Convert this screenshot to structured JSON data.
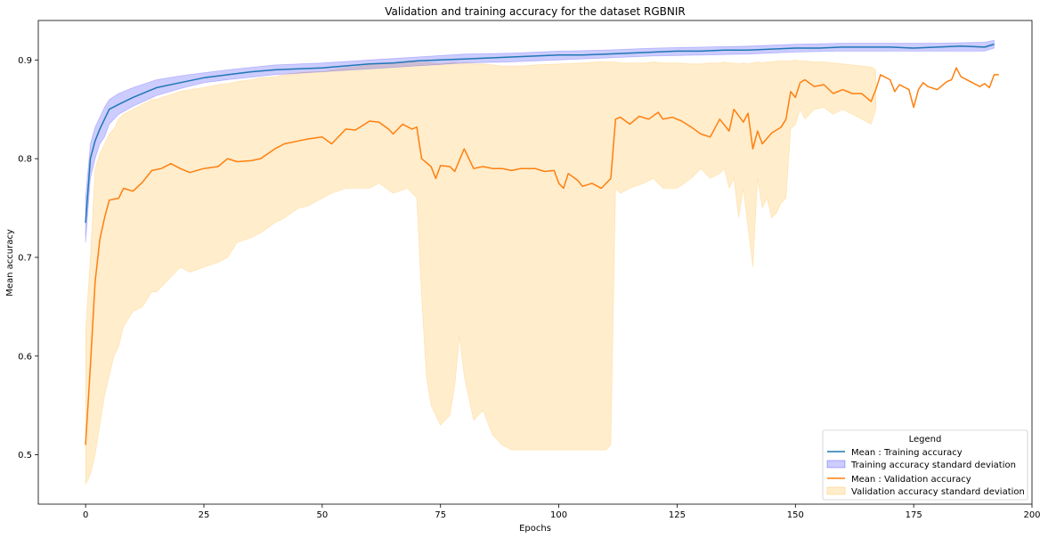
{
  "chart_data": {
    "type": "line",
    "title": "Validation and training accuracy for the dataset RGBNIR",
    "xlabel": "Epochs",
    "ylabel": "Mean accuracy",
    "xlim": [
      -10,
      200
    ],
    "ylim": [
      0.45,
      0.94
    ],
    "xticks": [
      0,
      25,
      50,
      75,
      100,
      125,
      150,
      175,
      200
    ],
    "yticks": [
      0.5,
      0.6,
      0.7,
      0.8,
      0.9
    ],
    "grid": false,
    "legend": {
      "title": "Legend",
      "placement": "lower-right",
      "entries": [
        "Mean : Training accuracy",
        "Training accuracy standard deviation",
        "Mean : Validation accuracy",
        "Validation accuracy standard deviation"
      ]
    },
    "colors": {
      "training_line": "#1f77b4",
      "training_band": "#0000ff",
      "validation_line": "#ff7f0e",
      "validation_band": "#ffa500"
    },
    "series": [
      {
        "name": "Mean : Training accuracy",
        "kind": "line",
        "points": [
          [
            0,
            0.735
          ],
          [
            1,
            0.8
          ],
          [
            2,
            0.818
          ],
          [
            3,
            0.83
          ],
          [
            4,
            0.84
          ],
          [
            5,
            0.85
          ],
          [
            7,
            0.855
          ],
          [
            10,
            0.862
          ],
          [
            13,
            0.868
          ],
          [
            15,
            0.872
          ],
          [
            20,
            0.877
          ],
          [
            25,
            0.882
          ],
          [
            30,
            0.885
          ],
          [
            35,
            0.888
          ],
          [
            40,
            0.89
          ],
          [
            45,
            0.891
          ],
          [
            50,
            0.892
          ],
          [
            55,
            0.894
          ],
          [
            60,
            0.896
          ],
          [
            65,
            0.897
          ],
          [
            70,
            0.899
          ],
          [
            75,
            0.9
          ],
          [
            80,
            0.901
          ],
          [
            85,
            0.902
          ],
          [
            90,
            0.903
          ],
          [
            95,
            0.904
          ],
          [
            100,
            0.905
          ],
          [
            105,
            0.905
          ],
          [
            110,
            0.906
          ],
          [
            115,
            0.907
          ],
          [
            120,
            0.908
          ],
          [
            125,
            0.909
          ],
          [
            130,
            0.909
          ],
          [
            135,
            0.91
          ],
          [
            140,
            0.91
          ],
          [
            145,
            0.911
          ],
          [
            150,
            0.912
          ],
          [
            155,
            0.912
          ],
          [
            160,
            0.913
          ],
          [
            165,
            0.913
          ],
          [
            170,
            0.913
          ],
          [
            175,
            0.912
          ],
          [
            180,
            0.913
          ],
          [
            185,
            0.914
          ],
          [
            190,
            0.913
          ],
          [
            192,
            0.916
          ]
        ]
      },
      {
        "name": "Training accuracy standard deviation",
        "kind": "band",
        "x": [
          0,
          1,
          2,
          3,
          4,
          5,
          7,
          10,
          15,
          20,
          25,
          30,
          40,
          50,
          60,
          70,
          80,
          90,
          100,
          110,
          120,
          130,
          140,
          150,
          160,
          170,
          180,
          190,
          192
        ],
        "lower": [
          0.715,
          0.78,
          0.8,
          0.815,
          0.822,
          0.835,
          0.845,
          0.853,
          0.864,
          0.871,
          0.877,
          0.88,
          0.885,
          0.888,
          0.891,
          0.894,
          0.897,
          0.898,
          0.9,
          0.902,
          0.904,
          0.905,
          0.906,
          0.908,
          0.909,
          0.909,
          0.909,
          0.909,
          0.912
        ],
        "upper": [
          0.76,
          0.815,
          0.832,
          0.842,
          0.852,
          0.86,
          0.866,
          0.872,
          0.88,
          0.884,
          0.887,
          0.89,
          0.895,
          0.897,
          0.9,
          0.903,
          0.906,
          0.907,
          0.909,
          0.91,
          0.912,
          0.913,
          0.914,
          0.916,
          0.917,
          0.917,
          0.917,
          0.918,
          0.92
        ]
      },
      {
        "name": "Mean : Validation accuracy",
        "kind": "line",
        "points": [
          [
            0,
            0.51
          ],
          [
            1,
            0.59
          ],
          [
            2,
            0.675
          ],
          [
            3,
            0.718
          ],
          [
            4,
            0.74
          ],
          [
            5,
            0.758
          ],
          [
            7,
            0.76
          ],
          [
            8,
            0.77
          ],
          [
            10,
            0.767
          ],
          [
            12,
            0.776
          ],
          [
            14,
            0.788
          ],
          [
            16,
            0.79
          ],
          [
            18,
            0.795
          ],
          [
            20,
            0.79
          ],
          [
            22,
            0.786
          ],
          [
            25,
            0.79
          ],
          [
            28,
            0.792
          ],
          [
            30,
            0.8
          ],
          [
            32,
            0.797
          ],
          [
            35,
            0.798
          ],
          [
            37,
            0.8
          ],
          [
            40,
            0.81
          ],
          [
            42,
            0.815
          ],
          [
            45,
            0.818
          ],
          [
            47,
            0.82
          ],
          [
            50,
            0.822
          ],
          [
            52,
            0.815
          ],
          [
            55,
            0.83
          ],
          [
            57,
            0.829
          ],
          [
            60,
            0.838
          ],
          [
            62,
            0.837
          ],
          [
            64,
            0.83
          ],
          [
            65,
            0.825
          ],
          [
            67,
            0.835
          ],
          [
            69,
            0.83
          ],
          [
            70,
            0.832
          ],
          [
            71,
            0.8
          ],
          [
            73,
            0.792
          ],
          [
            74,
            0.78
          ],
          [
            75,
            0.793
          ],
          [
            77,
            0.792
          ],
          [
            78,
            0.787
          ],
          [
            80,
            0.81
          ],
          [
            82,
            0.79
          ],
          [
            84,
            0.792
          ],
          [
            86,
            0.79
          ],
          [
            88,
            0.79
          ],
          [
            90,
            0.788
          ],
          [
            92,
            0.79
          ],
          [
            95,
            0.79
          ],
          [
            97,
            0.787
          ],
          [
            99,
            0.788
          ],
          [
            100,
            0.775
          ],
          [
            101,
            0.77
          ],
          [
            102,
            0.785
          ],
          [
            104,
            0.778
          ],
          [
            105,
            0.772
          ],
          [
            107,
            0.775
          ],
          [
            109,
            0.77
          ],
          [
            111,
            0.78
          ],
          [
            112,
            0.84
          ],
          [
            113,
            0.842
          ],
          [
            115,
            0.835
          ],
          [
            117,
            0.843
          ],
          [
            119,
            0.84
          ],
          [
            121,
            0.847
          ],
          [
            122,
            0.84
          ],
          [
            124,
            0.842
          ],
          [
            126,
            0.838
          ],
          [
            128,
            0.832
          ],
          [
            130,
            0.825
          ],
          [
            132,
            0.822
          ],
          [
            134,
            0.84
          ],
          [
            136,
            0.828
          ],
          [
            137,
            0.85
          ],
          [
            139,
            0.837
          ],
          [
            140,
            0.846
          ],
          [
            141,
            0.81
          ],
          [
            142,
            0.828
          ],
          [
            143,
            0.815
          ],
          [
            145,
            0.826
          ],
          [
            147,
            0.832
          ],
          [
            148,
            0.84
          ],
          [
            149,
            0.868
          ],
          [
            150,
            0.862
          ],
          [
            151,
            0.877
          ],
          [
            152,
            0.88
          ],
          [
            154,
            0.873
          ],
          [
            156,
            0.875
          ],
          [
            158,
            0.866
          ],
          [
            160,
            0.87
          ],
          [
            162,
            0.866
          ],
          [
            164,
            0.866
          ],
          [
            166,
            0.858
          ],
          [
            167,
            0.87
          ],
          [
            168,
            0.885
          ],
          [
            170,
            0.88
          ],
          [
            171,
            0.868
          ],
          [
            172,
            0.875
          ],
          [
            174,
            0.87
          ],
          [
            175,
            0.852
          ],
          [
            176,
            0.87
          ],
          [
            177,
            0.877
          ],
          [
            178,
            0.873
          ],
          [
            180,
            0.87
          ],
          [
            182,
            0.878
          ],
          [
            183,
            0.88
          ],
          [
            184,
            0.892
          ],
          [
            185,
            0.883
          ],
          [
            187,
            0.878
          ],
          [
            189,
            0.873
          ],
          [
            190,
            0.876
          ],
          [
            191,
            0.872
          ],
          [
            192,
            0.885
          ],
          [
            193,
            0.885
          ]
        ]
      },
      {
        "name": "Validation accuracy standard deviation",
        "kind": "band",
        "x": [
          0,
          1,
          2,
          3,
          4,
          5,
          6,
          7,
          8,
          10,
          12,
          14,
          15,
          16,
          18,
          20,
          22,
          25,
          28,
          30,
          32,
          35,
          37,
          40,
          42,
          45,
          47,
          50,
          52,
          55,
          57,
          60,
          62,
          65,
          68,
          70,
          71,
          72,
          73,
          75,
          77,
          78,
          79,
          80,
          82,
          84,
          86,
          88,
          90,
          92,
          95,
          100,
          105,
          108,
          110,
          111,
          112,
          113,
          115,
          118,
          120,
          122,
          125,
          128,
          130,
          132,
          134,
          135,
          136,
          137,
          138,
          139,
          140,
          141,
          142,
          143,
          144,
          145,
          146,
          147,
          148,
          149,
          150,
          151,
          152,
          154,
          156,
          158,
          160,
          162,
          164,
          166,
          167
        ],
        "lower": [
          0.47,
          0.48,
          0.5,
          0.53,
          0.56,
          0.58,
          0.6,
          0.61,
          0.63,
          0.645,
          0.65,
          0.665,
          0.665,
          0.67,
          0.68,
          0.69,
          0.685,
          0.69,
          0.695,
          0.7,
          0.715,
          0.72,
          0.725,
          0.735,
          0.74,
          0.75,
          0.752,
          0.76,
          0.765,
          0.77,
          0.77,
          0.77,
          0.775,
          0.765,
          0.77,
          0.76,
          0.66,
          0.58,
          0.55,
          0.53,
          0.54,
          0.57,
          0.62,
          0.58,
          0.535,
          0.545,
          0.52,
          0.51,
          0.505,
          0.505,
          0.505,
          0.505,
          0.505,
          0.505,
          0.505,
          0.51,
          0.77,
          0.765,
          0.77,
          0.775,
          0.78,
          0.77,
          0.77,
          0.78,
          0.79,
          0.78,
          0.785,
          0.79,
          0.77,
          0.78,
          0.74,
          0.77,
          0.73,
          0.69,
          0.78,
          0.75,
          0.76,
          0.74,
          0.745,
          0.755,
          0.76,
          0.83,
          0.835,
          0.85,
          0.84,
          0.85,
          0.852,
          0.845,
          0.85,
          0.845,
          0.84,
          0.835,
          0.85
        ],
        "upper": [
          0.625,
          0.7,
          0.79,
          0.805,
          0.815,
          0.825,
          0.83,
          0.84,
          0.845,
          0.85,
          0.855,
          0.86,
          0.86,
          0.862,
          0.865,
          0.868,
          0.87,
          0.872,
          0.875,
          0.876,
          0.878,
          0.88,
          0.882,
          0.883,
          0.885,
          0.887,
          0.888,
          0.888,
          0.89,
          0.892,
          0.893,
          0.895,
          0.896,
          0.897,
          0.898,
          0.898,
          0.897,
          0.898,
          0.897,
          0.896,
          0.897,
          0.898,
          0.896,
          0.897,
          0.896,
          0.896,
          0.895,
          0.894,
          0.894,
          0.894,
          0.895,
          0.896,
          0.897,
          0.898,
          0.898,
          0.898,
          0.898,
          0.897,
          0.897,
          0.897,
          0.898,
          0.897,
          0.897,
          0.896,
          0.896,
          0.897,
          0.897,
          0.898,
          0.897,
          0.897,
          0.896,
          0.897,
          0.896,
          0.897,
          0.898,
          0.897,
          0.898,
          0.898,
          0.899,
          0.899,
          0.899,
          0.899,
          0.9,
          0.899,
          0.899,
          0.898,
          0.898,
          0.897,
          0.896,
          0.895,
          0.894,
          0.893,
          0.89
        ]
      }
    ]
  }
}
